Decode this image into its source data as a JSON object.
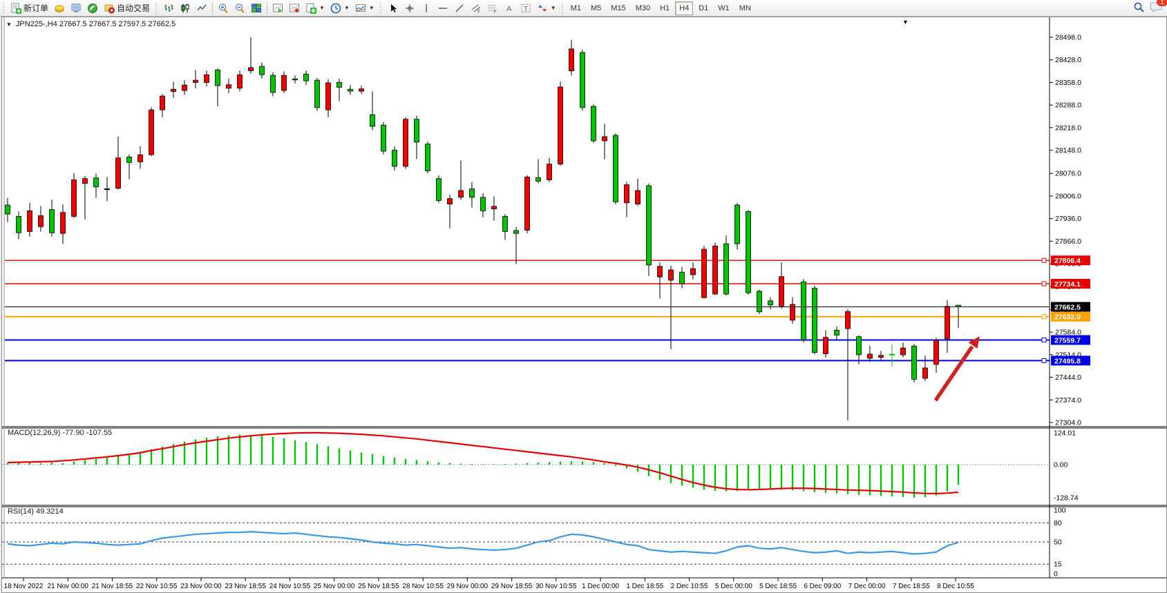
{
  "toolbar": {
    "new_order_label": "新订单",
    "autotrade_label": "自动交易",
    "timeframes": [
      "M1",
      "M5",
      "M15",
      "M30",
      "H1",
      "H4",
      "D1",
      "W1",
      "MN"
    ],
    "active_timeframe": "H4",
    "notification_count": "1",
    "icons": {
      "new_order": "document-green-plus",
      "gold": "gold-bar",
      "terminal": "monitor",
      "signal": "green-signal",
      "autotrade": "autotrade-red-dot",
      "chart_types": [
        "bar-chart",
        "candlestick-chart",
        "line-chart"
      ],
      "zoom": [
        "zoom-in",
        "zoom-out"
      ],
      "tile": "tile-windows",
      "profiles": [
        "chart-play",
        "chart-plus"
      ],
      "dropdowns": [
        "new-chart-plus",
        "clock-period",
        "indicator-list"
      ],
      "draw_tools": [
        "cursor",
        "crosshair",
        "vertical-line",
        "horizontal-line",
        "trendline",
        "equidistant-channel",
        "fibonacci",
        "text-a",
        "text-label",
        "shapes"
      ],
      "right": [
        "search",
        "chat-bubble"
      ]
    }
  },
  "chart": {
    "title": "JPN225-,H4  27667.5 27667.5 27597.5 27662.5",
    "symbol": "JPN225-",
    "period": "H4",
    "ohlc": {
      "open": "27667.5",
      "high": "27667.5",
      "low": "27597.5",
      "close": "27662.5"
    }
  },
  "price_axis": {
    "top_value": 28498.0,
    "bottom_value": 27304.0,
    "ticks": [
      "28498.0",
      "28428.0",
      "28358.0",
      "28288.0",
      "28218.0",
      "28148.0",
      "28076.0",
      "28006.0",
      "27936.0",
      "27866.0",
      "27796.0",
      "27726.0",
      "27654.0",
      "27584.0",
      "27514.0",
      "27444.0",
      "27374.0",
      "27304.0"
    ]
  },
  "time_axis": {
    "labels": [
      "18 Nov 2022",
      "21 Nov 00:00",
      "21 Nov 18:55",
      "22 Nov 10:55",
      "23 Nov 00:00",
      "23 Nov 18:55",
      "24 Nov 10:55",
      "25 Nov 00:00",
      "25 Nov 18:55",
      "28 Nov 10:55",
      "29 Nov 00:00",
      "29 Nov 18:55",
      "30 Nov 10:55",
      "1 Dec 00:00",
      "1 Dec 18:55",
      "2 Dec 10:55",
      "5 Dec 00:00",
      "5 Dec 18:55",
      "6 Dec 09:00",
      "7 Dec 00:00",
      "7 Dec 18:55",
      "8 Dec 10:55"
    ]
  },
  "price_lines": [
    {
      "price": "27806.4",
      "value": 27806.4,
      "color": "#e60000",
      "width": 1.4,
      "kind": "resistance"
    },
    {
      "price": "27734.1",
      "value": 27734.1,
      "color": "#e60000",
      "width": 1.4,
      "kind": "resistance"
    },
    {
      "price": "27662.5",
      "value": 27662.5,
      "color": "#000000",
      "width": 1,
      "kind": "current-price"
    },
    {
      "price": "27632.0",
      "value": 27632.0,
      "color": "#ffa000",
      "width": 2,
      "kind": "level"
    },
    {
      "price": "27559.7",
      "value": 27559.7,
      "color": "#0000e6",
      "width": 2,
      "kind": "support"
    },
    {
      "price": "27495.8",
      "value": 27495.8,
      "color": "#0000e6",
      "width": 2,
      "kind": "support"
    }
  ],
  "indicators": {
    "macd": {
      "label": "MACD(12,26,9)",
      "value": "-77.90",
      "signal_value": "-107.55",
      "axis": [
        {
          "text": "124.01",
          "v": 124.01
        },
        {
          "text": "0.00",
          "v": 0
        },
        {
          "text": "-128.74",
          "v": -128.74
        }
      ]
    },
    "rsi": {
      "label": "RSI(14)",
      "value": "49.3214",
      "axis": [
        {
          "text": "100",
          "v": 100
        },
        {
          "text": "80",
          "v": 80
        },
        {
          "text": "50",
          "v": 50
        },
        {
          "text": "15",
          "v": 15
        },
        {
          "text": "0",
          "v": 0
        }
      ],
      "levels": [
        80,
        50,
        15
      ]
    }
  },
  "annotation": {
    "type": "arrow-up-right",
    "color": "#d22020"
  },
  "colors": {
    "bull": "#00c400",
    "bear": "#f50000",
    "wick": "#000000",
    "macd_hist": "#00c400",
    "macd_signal": "#e80000",
    "rsi_line": "#3898e8"
  },
  "chart_data": {
    "type": "candlestick",
    "symbol": "JPN225-",
    "timeframe": "H4",
    "ylim": [
      27304.0,
      28498.0
    ],
    "candles": [
      [
        27950,
        28000,
        27925,
        27978,
        "g"
      ],
      [
        27943,
        27958,
        27872,
        27892,
        "g"
      ],
      [
        27960,
        27985,
        27880,
        27896,
        "r"
      ],
      [
        27945,
        27975,
        27895,
        27911,
        "r"
      ],
      [
        27892,
        27995,
        27880,
        27964,
        "g"
      ],
      [
        27955,
        27980,
        27858,
        27890,
        "r"
      ],
      [
        28056,
        28077,
        27938,
        27943,
        "r"
      ],
      [
        28060,
        28068,
        27933,
        28045,
        "r"
      ],
      [
        28034,
        28075,
        28000,
        28062,
        "g"
      ],
      [
        28028,
        28065,
        27990,
        28026,
        "k"
      ],
      [
        28124,
        28190,
        28026,
        28030,
        "r"
      ],
      [
        28110,
        28135,
        28058,
        28127,
        "g"
      ],
      [
        28134,
        28160,
        28090,
        28112,
        "r"
      ],
      [
        28273,
        28281,
        28130,
        28134,
        "r"
      ],
      [
        28316,
        28322,
        28250,
        28273,
        "r"
      ],
      [
        28337,
        28360,
        28310,
        28330,
        "r"
      ],
      [
        28350,
        28365,
        28320,
        28333,
        "r"
      ],
      [
        28365,
        28397,
        28340,
        28358,
        "r"
      ],
      [
        28382,
        28395,
        28345,
        28358,
        "r"
      ],
      [
        28348,
        28402,
        28284,
        28397,
        "g"
      ],
      [
        28351,
        28370,
        28325,
        28340,
        "r"
      ],
      [
        28382,
        28395,
        28330,
        28340,
        "r"
      ],
      [
        28404,
        28498,
        28385,
        28394,
        "r"
      ],
      [
        28382,
        28420,
        28370,
        28408,
        "g"
      ],
      [
        28327,
        28390,
        28315,
        28380,
        "g"
      ],
      [
        28380,
        28392,
        28325,
        28333,
        "r"
      ],
      [
        28367,
        28380,
        28355,
        28369,
        "g"
      ],
      [
        28363,
        28395,
        28350,
        28384,
        "g"
      ],
      [
        28280,
        28372,
        28270,
        28365,
        "g"
      ],
      [
        28357,
        28368,
        28250,
        28273,
        "r"
      ],
      [
        28343,
        28370,
        28300,
        28358,
        "g"
      ],
      [
        28331,
        28350,
        28320,
        28337,
        "g"
      ],
      [
        28338,
        28348,
        28322,
        28331,
        "r"
      ],
      [
        28222,
        28330,
        28210,
        28258,
        "g"
      ],
      [
        28145,
        28235,
        28135,
        28226,
        "g"
      ],
      [
        28098,
        28160,
        28085,
        28148,
        "g"
      ],
      [
        28244,
        28250,
        28090,
        28098,
        "r"
      ],
      [
        28173,
        28255,
        28120,
        28244,
        "g"
      ],
      [
        28084,
        28175,
        28075,
        28167,
        "g"
      ],
      [
        27992,
        28070,
        27985,
        28060,
        "g"
      ],
      [
        27998,
        28010,
        27906,
        27981,
        "r"
      ],
      [
        28023,
        28116,
        27995,
        28002,
        "r"
      ],
      [
        28002,
        28050,
        27970,
        28028,
        "g"
      ],
      [
        27960,
        28015,
        27940,
        28002,
        "g"
      ],
      [
        27974,
        28005,
        27930,
        27966,
        "r"
      ],
      [
        27896,
        27950,
        27870,
        27943,
        "g"
      ],
      [
        27890,
        27910,
        27795,
        27899,
        "g"
      ],
      [
        28065,
        28070,
        27890,
        27900,
        "r"
      ],
      [
        28052,
        28120,
        28045,
        28063,
        "g"
      ],
      [
        28105,
        28124,
        28050,
        28056,
        "r"
      ],
      [
        28344,
        28361,
        28100,
        28105,
        "r"
      ],
      [
        28462,
        28490,
        28380,
        28394,
        "r"
      ],
      [
        28280,
        28460,
        28270,
        28451,
        "g"
      ],
      [
        28177,
        28290,
        28170,
        28284,
        "g"
      ],
      [
        28190,
        28230,
        28120,
        28177,
        "r"
      ],
      [
        27988,
        28200,
        27980,
        28194,
        "g"
      ],
      [
        28041,
        28050,
        27940,
        27985,
        "r"
      ],
      [
        28023,
        28060,
        27975,
        27981,
        "r"
      ],
      [
        28038,
        28045,
        27758,
        27792,
        "g"
      ],
      [
        27788,
        27800,
        27688,
        27755,
        "r"
      ],
      [
        27777,
        27790,
        27531,
        27745,
        "r"
      ],
      [
        27734,
        27786,
        27720,
        27770,
        "g"
      ],
      [
        27781,
        27800,
        27748,
        27762,
        "r"
      ],
      [
        27841,
        27852,
        27688,
        27691,
        "r"
      ],
      [
        27851,
        27861,
        27700,
        27702,
        "r"
      ],
      [
        27702,
        27884,
        27698,
        27858,
        "g"
      ],
      [
        27858,
        27985,
        27840,
        27978,
        "g"
      ],
      [
        27958,
        27962,
        27700,
        27706,
        "g"
      ],
      [
        27711,
        27716,
        27640,
        27647,
        "g"
      ],
      [
        27668,
        27692,
        27654,
        27681,
        "g"
      ],
      [
        27756,
        27800,
        27656,
        27665,
        "r"
      ],
      [
        27670,
        27692,
        27610,
        27621,
        "r"
      ],
      [
        27740,
        27748,
        27552,
        27560,
        "g"
      ],
      [
        27720,
        27728,
        27515,
        27521,
        "g"
      ],
      [
        27568,
        27590,
        27505,
        27517,
        "r"
      ],
      [
        27575,
        27602,
        27558,
        27590,
        "g"
      ],
      [
        27648,
        27656,
        27310,
        27595,
        "r"
      ],
      [
        27514,
        27574,
        27484,
        27570,
        "g"
      ],
      [
        27516,
        27542,
        27492,
        27503,
        "r"
      ],
      [
        27512,
        27526,
        27496,
        27506,
        "r"
      ],
      [
        27514,
        27546,
        27478,
        27515,
        "gx"
      ],
      [
        27535,
        27552,
        27506,
        27514,
        "r"
      ],
      [
        27541,
        27547,
        27428,
        27438,
        "g"
      ],
      [
        27473,
        27512,
        27433,
        27441,
        "r"
      ],
      [
        27559,
        27566,
        27458,
        27484,
        "r"
      ],
      [
        27664,
        27683,
        27520,
        27563,
        "r"
      ],
      [
        27667.5,
        27667.5,
        27597.5,
        27662.5,
        "g"
      ]
    ],
    "macd_histogram": [
      6,
      8,
      7,
      5,
      8,
      6,
      12,
      18,
      22,
      28,
      35,
      42,
      50,
      60,
      70,
      80,
      90,
      98,
      105,
      110,
      114,
      117,
      116,
      113,
      108,
      102,
      95,
      88,
      80,
      72,
      63,
      55,
      47,
      40,
      33,
      27,
      22,
      17,
      13,
      9,
      6,
      4,
      3,
      2,
      2,
      3,
      4,
      6,
      8,
      10,
      12,
      13,
      12,
      10,
      6,
      -5,
      -15,
      -28,
      -45,
      -60,
      -72,
      -82,
      -90,
      -97,
      -102,
      -104,
      -103,
      -100,
      -98,
      -97,
      -98,
      -100,
      -103,
      -107,
      -110,
      -112,
      -115,
      -118,
      -120,
      -122,
      -124,
      -126,
      -128.7,
      -127,
      -120,
      -105,
      -77.9
    ],
    "macd_signal": [
      8,
      9,
      10,
      11,
      12,
      15,
      18,
      22,
      26,
      30,
      35,
      40,
      46,
      55,
      62,
      70,
      78,
      85,
      91,
      97,
      103,
      108,
      112,
      116,
      119,
      121,
      123,
      124,
      124,
      123,
      122,
      120,
      118,
      115,
      112,
      108,
      104,
      100,
      95,
      90,
      85,
      80,
      75,
      70,
      65,
      60,
      55,
      50,
      45,
      40,
      35,
      30,
      24,
      18,
      11,
      5,
      -2,
      -10,
      -20,
      -32,
      -45,
      -58,
      -70,
      -80,
      -88,
      -94,
      -97,
      -98,
      -97,
      -95,
      -93,
      -92,
      -92,
      -93,
      -95,
      -97,
      -99,
      -100,
      -101,
      -103,
      -105,
      -107,
      -110,
      -112,
      -113,
      -111,
      -107.55
    ],
    "rsi": [
      47,
      45,
      44,
      46,
      48,
      47,
      50,
      49,
      48,
      46,
      45,
      46,
      47,
      52,
      56,
      58,
      60,
      62,
      63,
      64,
      65,
      65,
      66,
      65,
      64,
      63,
      64,
      62,
      60,
      58,
      57,
      55,
      53,
      50,
      48,
      47,
      45,
      46,
      44,
      42,
      40,
      41,
      39,
      38,
      37,
      38,
      40,
      45,
      50,
      52,
      58,
      62,
      61,
      58,
      54,
      50,
      46,
      44,
      38,
      36,
      34,
      35,
      34,
      33,
      32,
      36,
      42,
      44,
      40,
      39,
      41,
      38,
      35,
      33,
      34,
      36,
      32,
      34,
      33,
      34,
      35,
      33,
      31,
      32,
      34,
      44,
      49.32
    ],
    "macd_range": [
      124.01,
      -128.74
    ],
    "rsi_levels": [
      80,
      50,
      15
    ]
  }
}
